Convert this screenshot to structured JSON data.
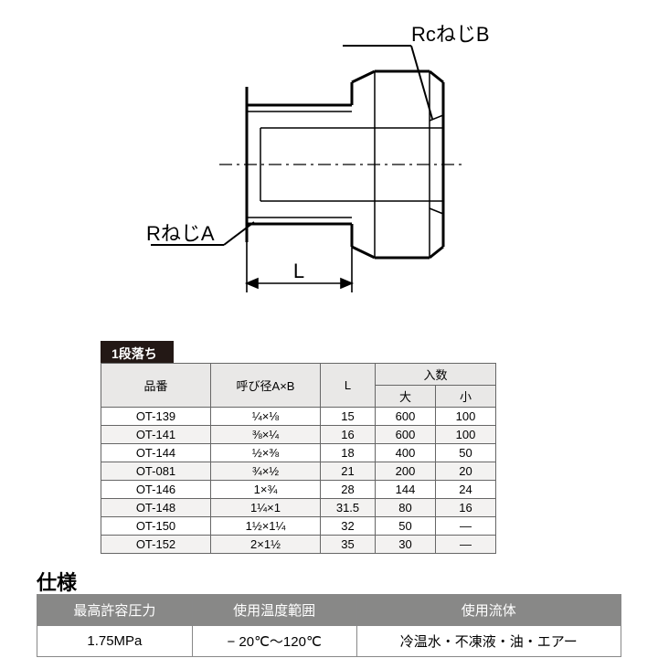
{
  "diagram": {
    "label_top": "RcねじB",
    "label_left": "RねじA",
    "dim_label": "L",
    "stroke_color": "#000000",
    "stroke_width_main": 3,
    "stroke_width_thin": 2,
    "font_size_label": 22,
    "font_size_dim": 22
  },
  "section": {
    "title": "1段落ち"
  },
  "table1": {
    "columns": [
      "品番",
      "呼び径A×B",
      "L",
      "入数"
    ],
    "qty_sub": [
      "大",
      "小"
    ],
    "rows": [
      [
        "OT-139",
        "¼×⅛",
        "15",
        "600",
        "100"
      ],
      [
        "OT-141",
        "⅜×¼",
        "16",
        "600",
        "100"
      ],
      [
        "OT-144",
        "½×⅜",
        "18",
        "400",
        "50"
      ],
      [
        "OT-081",
        "¾×½",
        "21",
        "200",
        "20"
      ],
      [
        "OT-146",
        "1×¾",
        "28",
        "144",
        "24"
      ],
      [
        "OT-148",
        "1¼×1",
        "31.5",
        "80",
        "16"
      ],
      [
        "OT-150",
        "1½×1¼",
        "32",
        "50",
        "—"
      ],
      [
        "OT-152",
        "2×1½",
        "35",
        "30",
        "—"
      ]
    ]
  },
  "shiyou": {
    "title": "仕様"
  },
  "table2": {
    "headers": [
      "最高許容圧力",
      "使用温度範囲",
      "使用流体"
    ],
    "values": [
      "1.75MPa",
      "− 20℃〜120℃",
      "冷温水・不凍液・油・エアー"
    ],
    "col_widths": [
      "170px",
      "180px",
      "290px"
    ]
  },
  "colors": {
    "table_header_bg": "#e9e8e7",
    "table_border": "#666666",
    "row_alt_bg": "#f3f2f1",
    "spec2_header_bg": "#888887",
    "section_bg": "#231815"
  }
}
